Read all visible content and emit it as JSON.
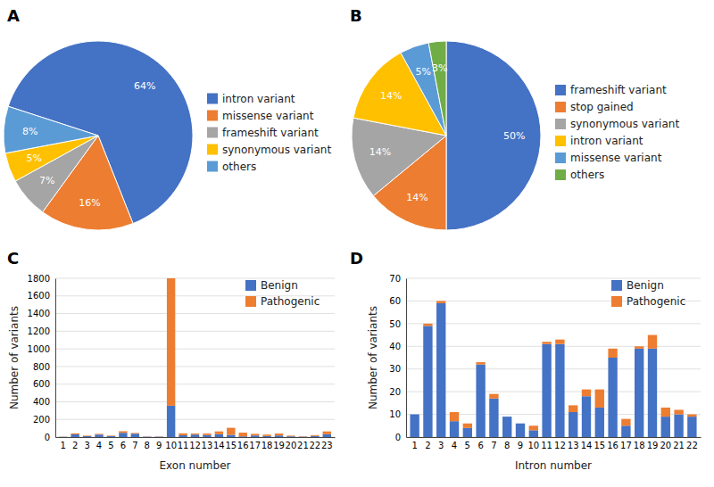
{
  "chart_data": [
    {
      "type": "pie",
      "title": "A",
      "categories": [
        "intron variant",
        "missense variant",
        "frameshift variant",
        "synonymous variant",
        "others"
      ],
      "values": [
        64,
        16,
        7,
        5,
        8
      ],
      "value_labels": [
        "64%",
        "16%",
        "7%",
        "5%",
        "8%"
      ],
      "colors": [
        "#4472C4",
        "#ED7D31",
        "#A5A5A5",
        "#FFC000",
        "#5B9BD5"
      ],
      "data_labels": true,
      "legend": "right"
    },
    {
      "type": "pie",
      "title": "B",
      "categories": [
        "frameshift variant",
        "stop gained",
        "synonymous variant",
        "intron variant",
        "missense variant",
        "others"
      ],
      "values": [
        50,
        14,
        14,
        14,
        5,
        3
      ],
      "value_labels": [
        "50%",
        "14%",
        "14%",
        "14%",
        "5%",
        "3%"
      ],
      "colors": [
        "#4472C4",
        "#ED7D31",
        "#A5A5A5",
        "#FFC000",
        "#5B9BD5",
        "#70AD47"
      ],
      "data_labels": true,
      "legend": "right"
    },
    {
      "type": "bar",
      "title": "C",
      "stacked": true,
      "categories": [
        "1",
        "2",
        "3",
        "4",
        "5",
        "6",
        "7",
        "8",
        "9",
        "10",
        "11",
        "12",
        "13",
        "14",
        "15",
        "16",
        "17",
        "18",
        "19",
        "20",
        "21",
        "22",
        "23"
      ],
      "series": [
        {
          "name": "Benign",
          "color": "#4472C4",
          "values": [
            2,
            30,
            10,
            28,
            10,
            48,
            38,
            4,
            4,
            355,
            20,
            28,
            22,
            32,
            25,
            8,
            18,
            12,
            18,
            8,
            4,
            12,
            32
          ]
        },
        {
          "name": "Pathogenic",
          "color": "#ED7D31",
          "values": [
            2,
            12,
            6,
            8,
            6,
            18,
            8,
            2,
            2,
            1445,
            22,
            12,
            18,
            32,
            80,
            42,
            18,
            16,
            22,
            8,
            4,
            10,
            32
          ]
        }
      ],
      "xlabel": "Exon number",
      "ylabel": "Number of variants",
      "ylim": [
        0,
        1800
      ],
      "yticks": [
        0,
        200,
        400,
        600,
        800,
        1000,
        1200,
        1400,
        1600,
        1800
      ],
      "grid": true,
      "legend": "upper right"
    },
    {
      "type": "bar",
      "title": "D",
      "stacked": true,
      "categories": [
        "1",
        "2",
        "3",
        "4",
        "5",
        "6",
        "7",
        "8",
        "9",
        "10",
        "11",
        "12",
        "13",
        "14",
        "15",
        "16",
        "17",
        "18",
        "19",
        "20",
        "21",
        "22"
      ],
      "series": [
        {
          "name": "Benign",
          "color": "#4472C4",
          "values": [
            10,
            49,
            59,
            7,
            4,
            32,
            17,
            9,
            6,
            3,
            41,
            41,
            11,
            18,
            13,
            35,
            5,
            39,
            39,
            9,
            10,
            9
          ]
        },
        {
          "name": "Pathogenic",
          "color": "#ED7D31",
          "values": [
            0,
            1,
            1,
            4,
            2,
            1,
            2,
            0,
            0,
            2,
            1,
            2,
            3,
            3,
            8,
            4,
            3,
            1,
            6,
            4,
            2,
            1
          ]
        }
      ],
      "xlabel": "Intron number",
      "ylabel": "Number of variants",
      "ylim": [
        0,
        70
      ],
      "yticks": [
        0,
        10,
        20,
        30,
        40,
        50,
        60,
        70
      ],
      "grid": true,
      "legend": "upper right"
    }
  ]
}
